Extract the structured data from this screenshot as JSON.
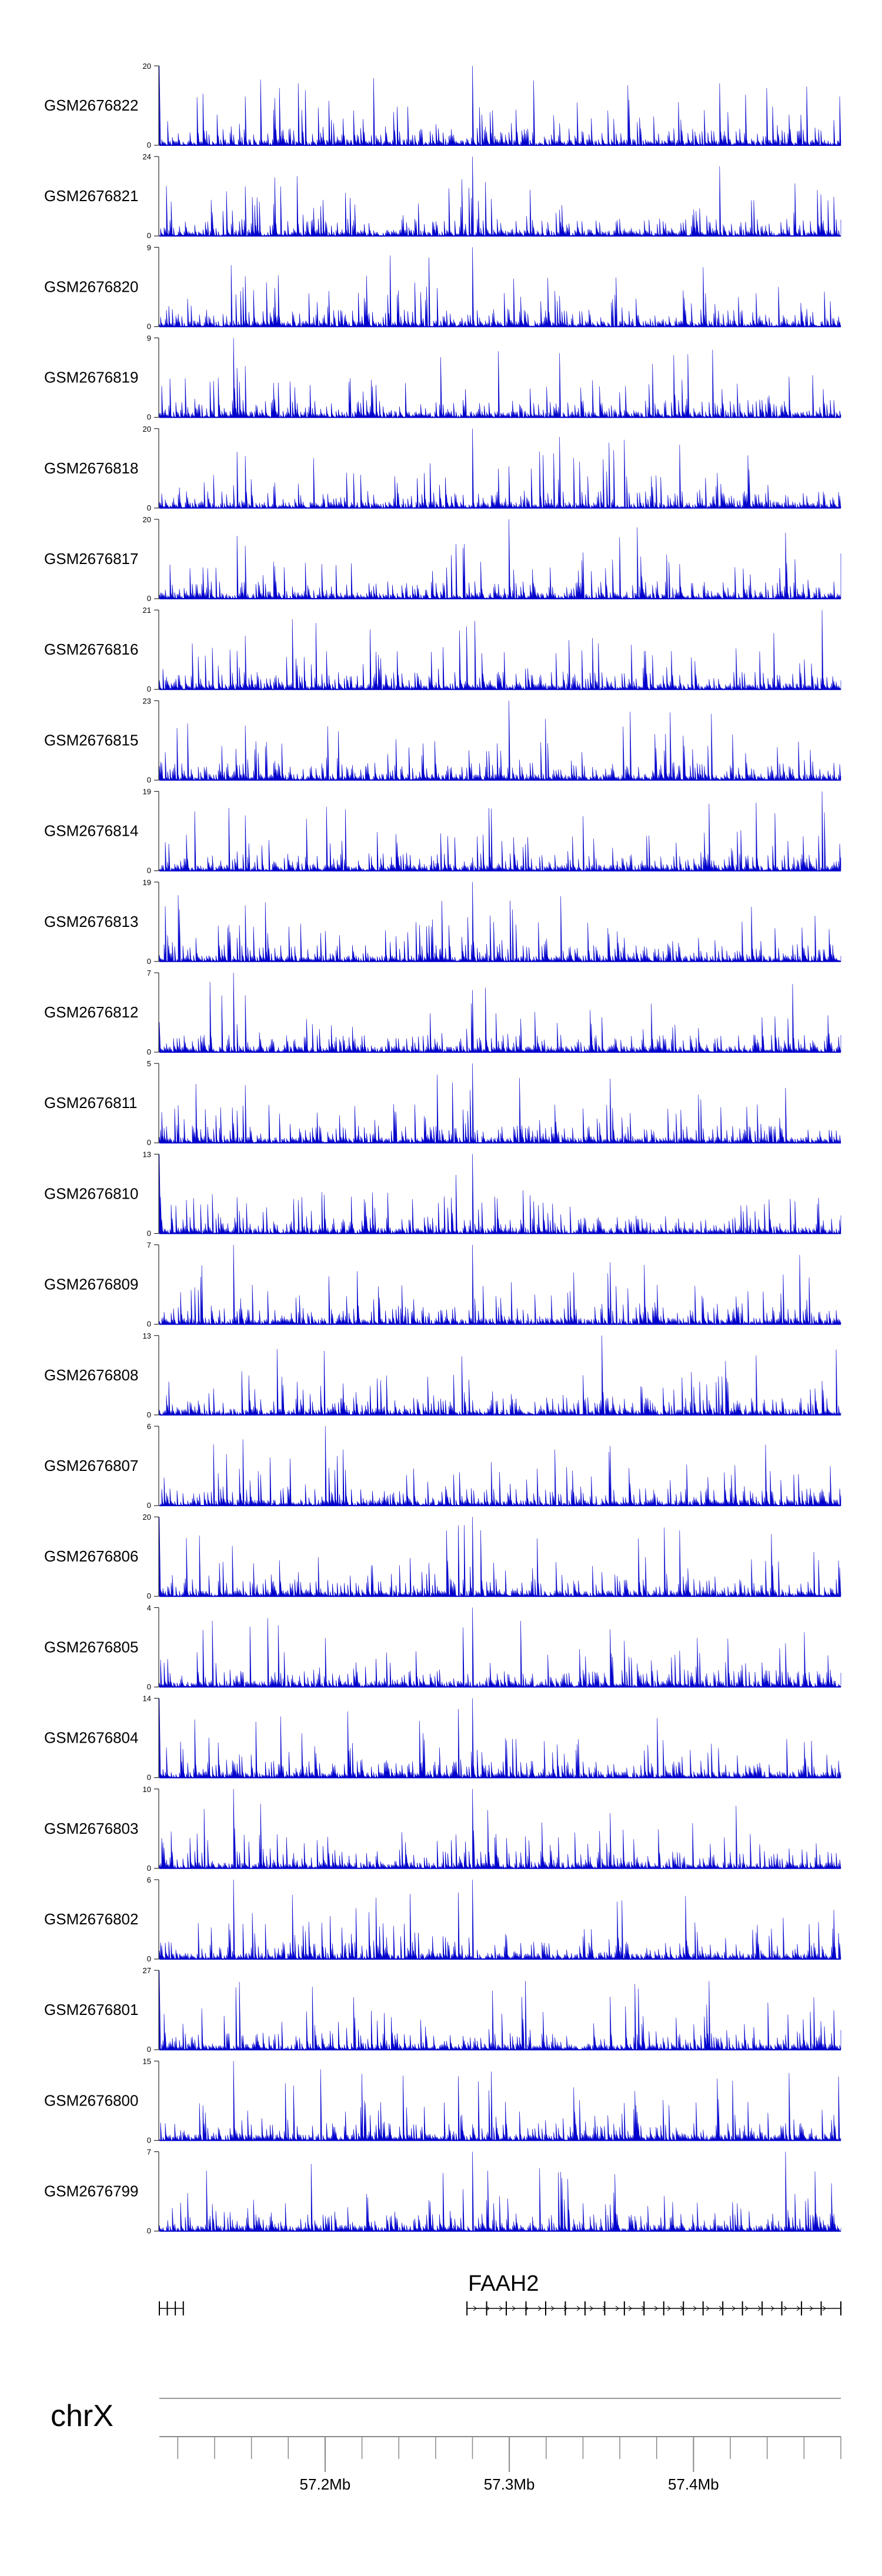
{
  "chart_data": {
    "type": "area",
    "title": "",
    "xlabel": "",
    "colors": {
      "signal": "#0000cc",
      "axis": "#000000",
      "scale": "#888888"
    },
    "region": {
      "chromosome": "chrX",
      "start_mb": 57.11,
      "end_mb": 57.48
    },
    "tracks": [
      {
        "name": "GSM2676822",
        "ymax_label": "20",
        "ymin_label": "0",
        "ylim": [
          0,
          20
        ],
        "peaks_mb": [
          57.11,
          57.28
        ]
      },
      {
        "name": "GSM2676821",
        "ymax_label": "24",
        "ymin_label": "0",
        "ylim": [
          0,
          24
        ],
        "peaks_mb": [
          57.28
        ]
      },
      {
        "name": "GSM2676820",
        "ymax_label": "9",
        "ymin_label": "0",
        "ylim": [
          0,
          9
        ],
        "peaks_mb": [
          57.28
        ]
      },
      {
        "name": "GSM2676819",
        "ymax_label": "9",
        "ymin_label": "0",
        "ylim": [
          0,
          9
        ],
        "peaks_mb": [
          57.15
        ]
      },
      {
        "name": "GSM2676818",
        "ymax_label": "20",
        "ymin_label": "0",
        "ylim": [
          0,
          20
        ],
        "peaks_mb": [
          57.28
        ]
      },
      {
        "name": "GSM2676817",
        "ymax_label": "20",
        "ymin_label": "0",
        "ylim": [
          0,
          20
        ],
        "peaks_mb": [
          57.3
        ]
      },
      {
        "name": "GSM2676816",
        "ymax_label": "21",
        "ymin_label": "0",
        "ylim": [
          0,
          21
        ],
        "peaks_mb": [
          57.47
        ]
      },
      {
        "name": "GSM2676815",
        "ymax_label": "23",
        "ymin_label": "0",
        "ylim": [
          0,
          23
        ],
        "peaks_mb": [
          57.3
        ]
      },
      {
        "name": "GSM2676814",
        "ymax_label": "19",
        "ymin_label": "0",
        "ylim": [
          0,
          19
        ],
        "peaks_mb": [
          57.47
        ]
      },
      {
        "name": "GSM2676813",
        "ymax_label": "19",
        "ymin_label": "0",
        "ylim": [
          0,
          19
        ],
        "peaks_mb": [
          57.28
        ]
      },
      {
        "name": "GSM2676812",
        "ymax_label": "7",
        "ymin_label": "0",
        "ylim": [
          0,
          7
        ],
        "peaks_mb": [
          57.15
        ]
      },
      {
        "name": "GSM2676811",
        "ymax_label": "5",
        "ymin_label": "0",
        "ylim": [
          0,
          5
        ],
        "peaks_mb": [
          57.28
        ]
      },
      {
        "name": "GSM2676810",
        "ymax_label": "13",
        "ymin_label": "0",
        "ylim": [
          0,
          13
        ],
        "peaks_mb": [
          57.11,
          57.28
        ]
      },
      {
        "name": "GSM2676809",
        "ymax_label": "7",
        "ymin_label": "0",
        "ylim": [
          0,
          7
        ],
        "peaks_mb": [
          57.15,
          57.28
        ]
      },
      {
        "name": "GSM2676808",
        "ymax_label": "13",
        "ymin_label": "0",
        "ylim": [
          0,
          13
        ],
        "peaks_mb": [
          57.35
        ]
      },
      {
        "name": "GSM2676807",
        "ymax_label": "6",
        "ymin_label": "0",
        "ylim": [
          0,
          6
        ],
        "peaks_mb": [
          57.2
        ]
      },
      {
        "name": "GSM2676806",
        "ymax_label": "20",
        "ymin_label": "0",
        "ylim": [
          0,
          20
        ],
        "peaks_mb": [
          57.11,
          57.28
        ]
      },
      {
        "name": "GSM2676805",
        "ymax_label": "4",
        "ymin_label": "0",
        "ylim": [
          0,
          4
        ],
        "peaks_mb": [
          57.28
        ]
      },
      {
        "name": "GSM2676804",
        "ymax_label": "14",
        "ymin_label": "0",
        "ylim": [
          0,
          14
        ],
        "peaks_mb": [
          57.11,
          57.28
        ]
      },
      {
        "name": "GSM2676803",
        "ymax_label": "10",
        "ymin_label": "0",
        "ylim": [
          0,
          10
        ],
        "peaks_mb": [
          57.28,
          57.15
        ]
      },
      {
        "name": "GSM2676802",
        "ymax_label": "6",
        "ymin_label": "0",
        "ylim": [
          0,
          6
        ],
        "peaks_mb": [
          57.28,
          57.15
        ]
      },
      {
        "name": "GSM2676801",
        "ymax_label": "27",
        "ymin_label": "0",
        "ylim": [
          0,
          27
        ],
        "peaks_mb": [
          57.11
        ]
      },
      {
        "name": "GSM2676800",
        "ymax_label": "15",
        "ymin_label": "0",
        "ylim": [
          0,
          15
        ],
        "peaks_mb": [
          57.15
        ]
      },
      {
        "name": "GSM2676799",
        "ymax_label": "7",
        "ymin_label": "0",
        "ylim": [
          0,
          7
        ],
        "peaks_mb": [
          57.28,
          57.45
        ]
      }
    ],
    "genes": [
      {
        "name": "",
        "start_mb": 57.11,
        "end_mb": 57.123
      },
      {
        "name": "FAAH2",
        "start_mb": 57.277,
        "end_mb": 57.48
      }
    ],
    "ideogram": {
      "label": "chrX"
    },
    "x_ticks": [
      {
        "value": 57.2,
        "label": "57.2Mb"
      },
      {
        "value": 57.3,
        "label": "57.3Mb"
      },
      {
        "value": 57.4,
        "label": "57.4Mb"
      }
    ],
    "minor_tick_step_mb": 0.02
  }
}
